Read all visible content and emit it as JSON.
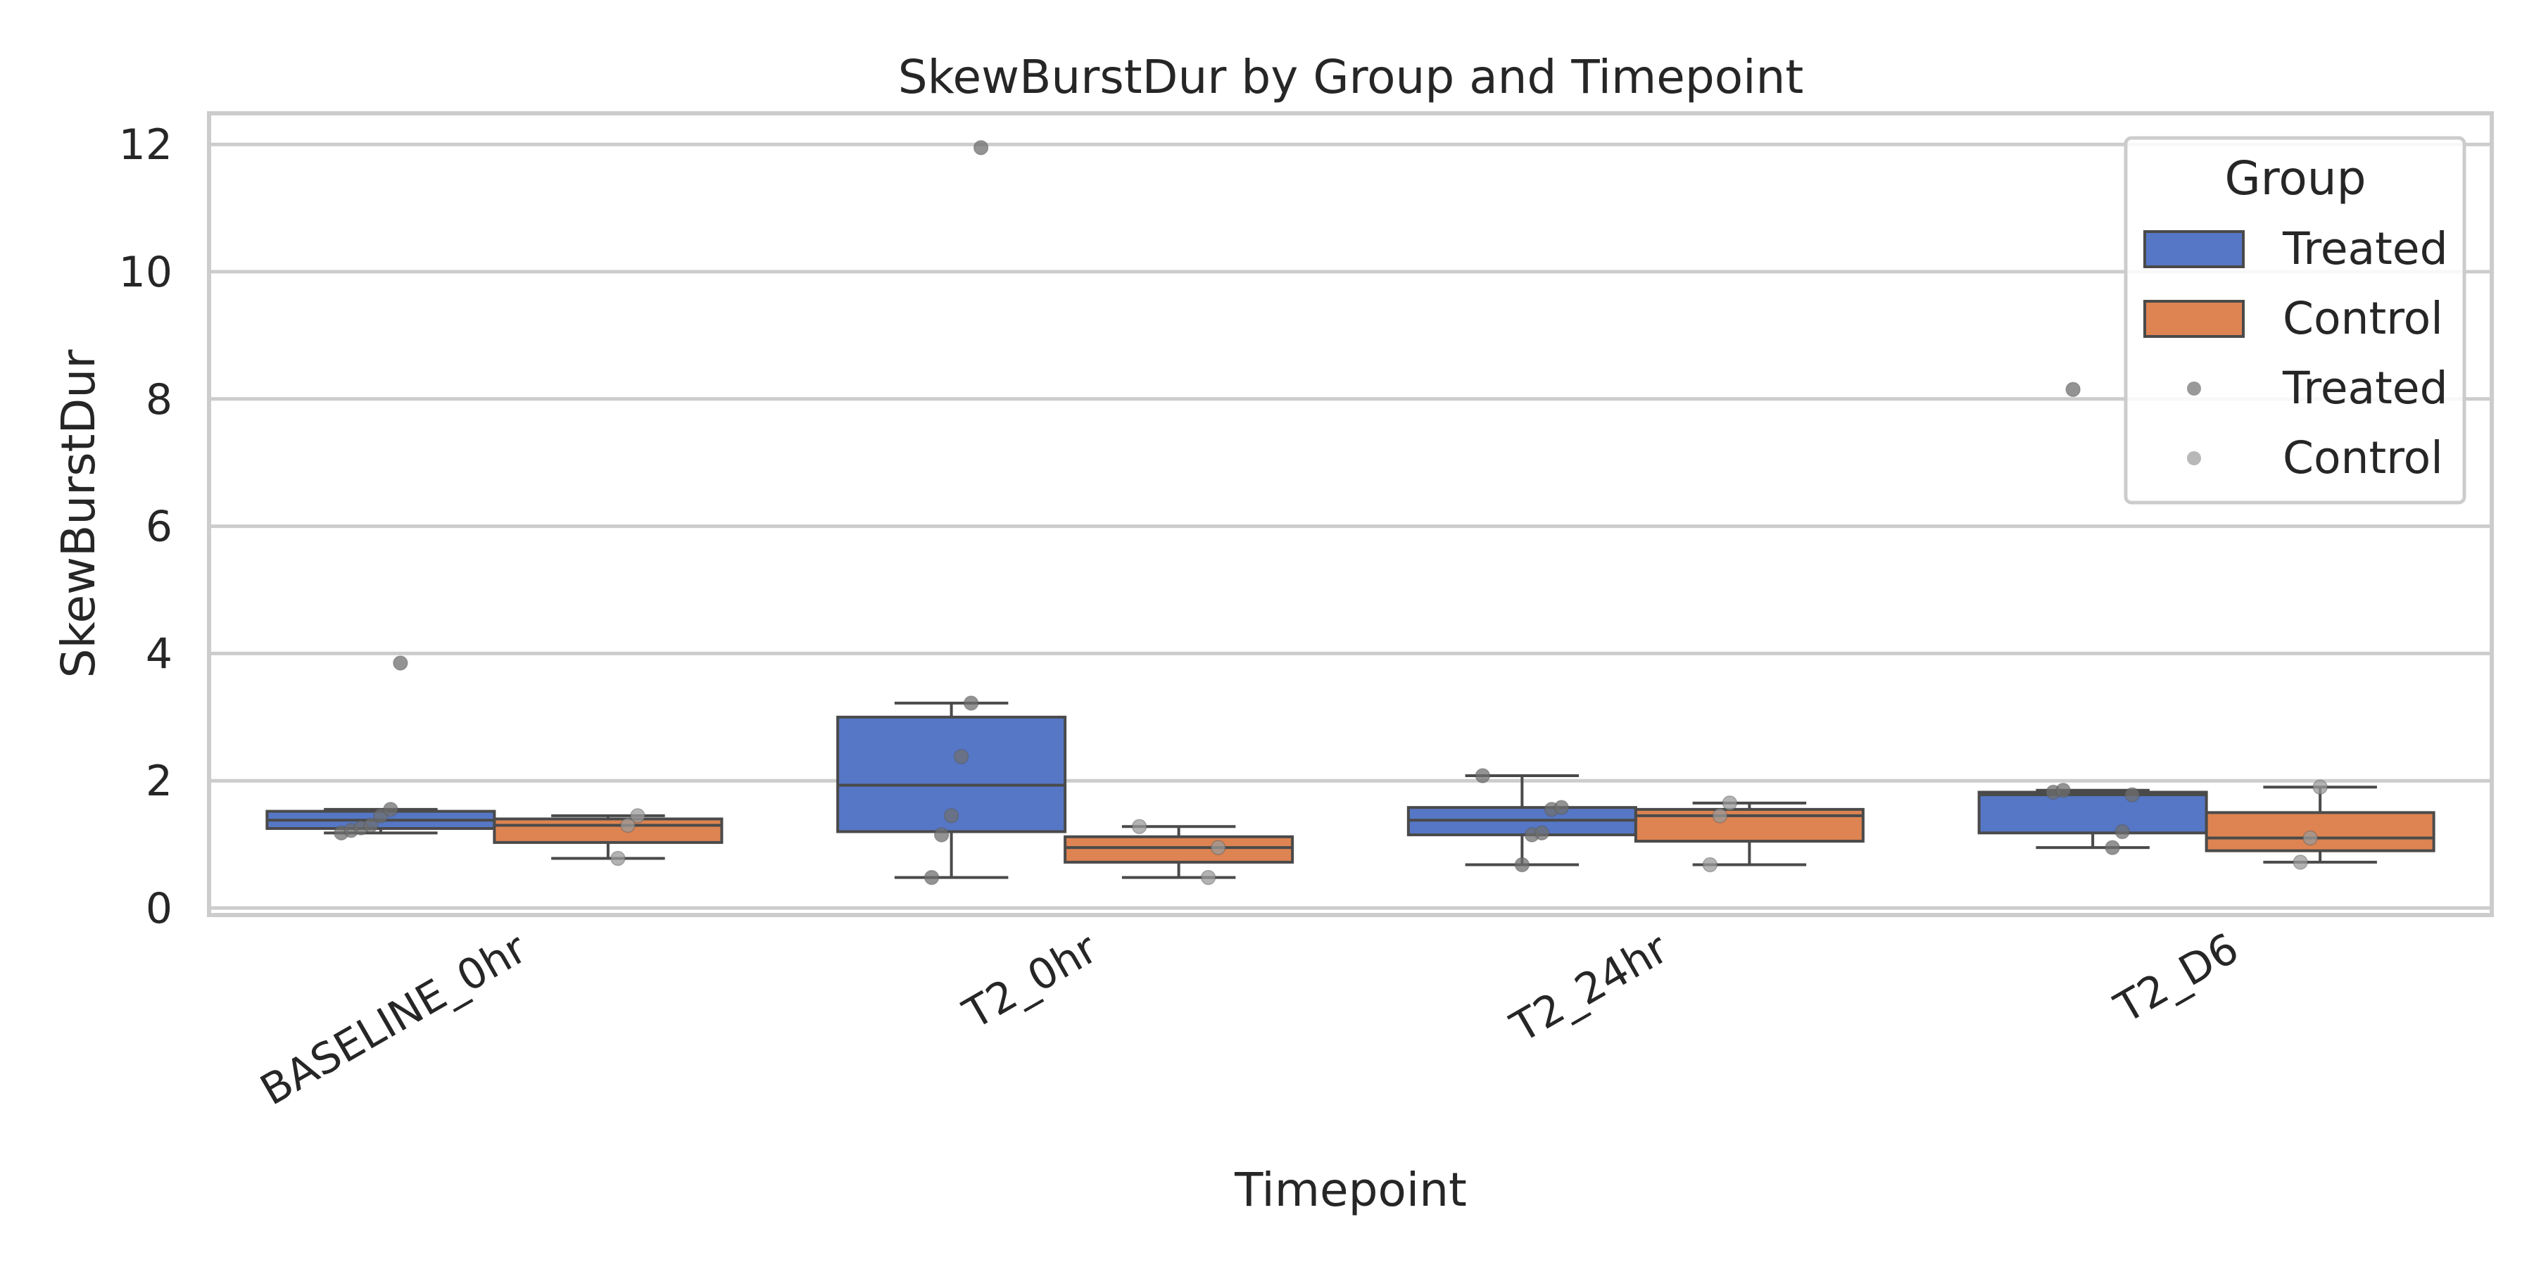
{
  "chart_data": {
    "type": "box",
    "title": "SkewBurstDur by Group and Timepoint",
    "xlabel": "Timepoint",
    "ylabel": "SkewBurstDur",
    "ylim": [
      -0.1,
      12.5
    ],
    "yticks": [
      0,
      2,
      4,
      6,
      8,
      10,
      12
    ],
    "grid": true,
    "categories": [
      "BASELINE_0hr",
      "T2_0hr",
      "T2_24hr",
      "T2_D6"
    ],
    "legend": {
      "title": "Group",
      "placement": "top-right",
      "box_entries": [
        "Treated",
        "Control"
      ],
      "point_entries": [
        "Treated",
        "Control"
      ]
    },
    "series": [
      {
        "name": "Treated",
        "color": "#5677c6",
        "boxes": [
          {
            "whisker_low": 1.18,
            "q1": 1.25,
            "median": 1.38,
            "q3": 1.52,
            "whisker_high": 1.55
          },
          {
            "whisker_low": 0.48,
            "q1": 1.2,
            "median": 1.93,
            "q3": 3.0,
            "whisker_high": 3.22
          },
          {
            "whisker_low": 0.68,
            "q1": 1.15,
            "median": 1.38,
            "q3": 1.58,
            "whisker_high": 2.08
          },
          {
            "whisker_low": 0.95,
            "q1": 1.18,
            "median": 1.78,
            "q3": 1.82,
            "whisker_high": 1.85
          }
        ],
        "points": [
          [
            1.18,
            1.22,
            1.26,
            1.3,
            1.45,
            1.55,
            3.85
          ],
          [
            0.48,
            1.15,
            1.45,
            2.38,
            3.22,
            11.95
          ],
          [
            0.68,
            1.15,
            1.18,
            1.55,
            1.58,
            2.08
          ],
          [
            0.95,
            1.2,
            1.78,
            1.82,
            1.85,
            8.15
          ]
        ]
      },
      {
        "name": "Control",
        "color": "#dd8452",
        "boxes": [
          {
            "whisker_low": 0.78,
            "q1": 1.03,
            "median": 1.3,
            "q3": 1.4,
            "whisker_high": 1.45
          },
          {
            "whisker_low": 0.48,
            "q1": 0.72,
            "median": 0.95,
            "q3": 1.12,
            "whisker_high": 1.28
          },
          {
            "whisker_low": 0.68,
            "q1": 1.05,
            "median": 1.45,
            "q3": 1.55,
            "whisker_high": 1.65
          },
          {
            "whisker_low": 0.72,
            "q1": 0.9,
            "median": 1.1,
            "q3": 1.5,
            "whisker_high": 1.9
          }
        ],
        "points": [
          [
            0.78,
            1.3,
            1.45
          ],
          [
            0.48,
            0.95,
            1.28
          ],
          [
            0.68,
            1.45,
            1.65
          ],
          [
            0.72,
            1.1,
            1.9
          ]
        ]
      }
    ]
  }
}
